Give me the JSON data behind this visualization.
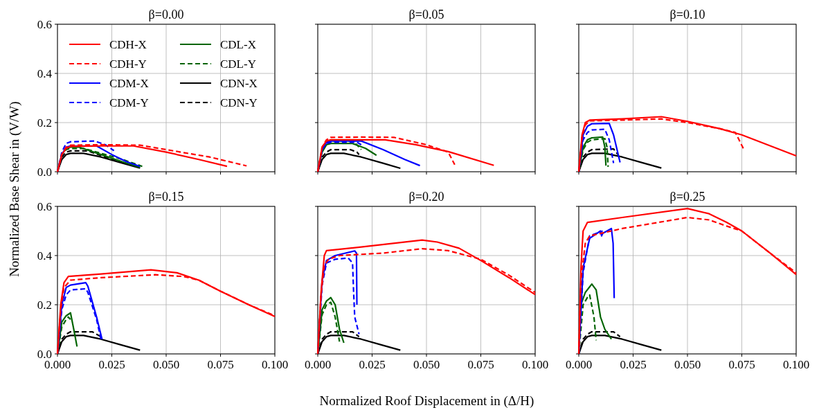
{
  "chart_data": [
    {
      "type": "line",
      "title": "β=0.00",
      "xlabel": "Normalized Roof Displacement in (Δ/H)",
      "ylabel": "Normalized Base Shear in (V/W)",
      "xlim": [
        0,
        0.1
      ],
      "ylim": [
        0,
        0.6
      ],
      "xticks": [
        {
          "value": 0,
          "label": null
        },
        {
          "value": 0.025,
          "label": null
        },
        {
          "value": 0.05,
          "label": null
        },
        {
          "value": 0.075,
          "label": null
        },
        {
          "value": 0.1,
          "label": null
        }
      ],
      "yticks": [
        {
          "value": 0,
          "label": "0.0"
        },
        {
          "value": 0.2,
          "label": "0.2"
        },
        {
          "value": 0.4,
          "label": "0.4"
        },
        {
          "value": 0.6,
          "label": "0.6"
        }
      ],
      "grid": true,
      "legend": "top left",
      "tick_labels": "y",
      "series": [
        {
          "name": "CDH-X",
          "color": "#ff0000",
          "line_style": "solid",
          "x": [
            0,
            0.002,
            0.004,
            0.006,
            0.02,
            0.035,
            0.05,
            0.065,
            0.078
          ],
          "values": [
            0,
            0.07,
            0.095,
            0.103,
            0.105,
            0.105,
            0.08,
            0.05,
            0.022
          ]
        },
        {
          "name": "CDH-Y",
          "color": "#ff0000",
          "line_style": "dashed",
          "x": [
            0,
            0.002,
            0.004,
            0.006,
            0.02,
            0.038,
            0.05,
            0.07,
            0.087
          ],
          "values": [
            0,
            0.07,
            0.1,
            0.108,
            0.11,
            0.108,
            0.09,
            0.06,
            0.024
          ]
        },
        {
          "name": "CDM-X",
          "color": "#0000ff",
          "line_style": "solid",
          "x": [
            0,
            0.002,
            0.004,
            0.006,
            0.018,
            0.025,
            0.032,
            0.038
          ],
          "values": [
            0,
            0.07,
            0.1,
            0.105,
            0.105,
            0.07,
            0.04,
            0.022
          ]
        },
        {
          "name": "CDM-Y",
          "color": "#0000ff",
          "line_style": "dashed",
          "x": [
            0,
            0.002,
            0.004,
            0.006,
            0.017,
            0.022,
            0.026
          ],
          "values": [
            0,
            0.08,
            0.115,
            0.122,
            0.125,
            0.11,
            0.086
          ]
        },
        {
          "name": "CDL-X",
          "color": "#006400",
          "line_style": "solid",
          "x": [
            0,
            0.002,
            0.004,
            0.006,
            0.01,
            0.02,
            0.03,
            0.038
          ],
          "values": [
            0,
            0.07,
            0.095,
            0.1,
            0.1,
            0.07,
            0.04,
            0.018
          ]
        },
        {
          "name": "CDL-Y",
          "color": "#006400",
          "line_style": "dashed",
          "x": [
            0,
            0.002,
            0.004,
            0.006,
            0.012,
            0.02,
            0.03,
            0.039
          ],
          "values": [
            0,
            0.07,
            0.09,
            0.095,
            0.095,
            0.075,
            0.05,
            0.022
          ]
        },
        {
          "name": "CDN-X",
          "color": "#000000",
          "line_style": "solid",
          "x": [
            0,
            0.002,
            0.004,
            0.006,
            0.012,
            0.02,
            0.03,
            0.038
          ],
          "values": [
            0,
            0.05,
            0.07,
            0.075,
            0.075,
            0.06,
            0.035,
            0.015
          ]
        },
        {
          "name": "CDN-Y",
          "color": "#000000",
          "line_style": "dashed",
          "x": [
            0,
            0.002,
            0.004,
            0.006,
            0.014,
            0.025,
            0.035
          ],
          "values": [
            0,
            0.06,
            0.08,
            0.085,
            0.085,
            0.05,
            0.025
          ]
        }
      ]
    },
    {
      "type": "line",
      "title": "β=0.05",
      "xlim": [
        0,
        0.1
      ],
      "ylim": [
        0,
        0.6
      ],
      "xticks": [
        {
          "value": 0,
          "label": null
        },
        {
          "value": 0.025,
          "label": null
        },
        {
          "value": 0.05,
          "label": null
        },
        {
          "value": 0.075,
          "label": null
        },
        {
          "value": 0.1,
          "label": null
        }
      ],
      "yticks": [
        {
          "value": 0,
          "label": null
        },
        {
          "value": 0.2,
          "label": null
        },
        {
          "value": 0.4,
          "label": null
        },
        {
          "value": 0.6,
          "label": null
        }
      ],
      "grid": true,
      "tick_labels": false,
      "series": [
        {
          "color": "#ff0000",
          "line_style": "solid",
          "x": [
            0,
            0.002,
            0.004,
            0.006,
            0.02,
            0.031,
            0.045,
            0.06,
            0.081
          ],
          "values": [
            0,
            0.1,
            0.125,
            0.13,
            0.13,
            0.13,
            0.11,
            0.082,
            0.026
          ]
        },
        {
          "color": "#ff0000",
          "line_style": "dashed",
          "x": [
            0,
            0.002,
            0.004,
            0.006,
            0.02,
            0.035,
            0.05,
            0.06,
            0.063
          ],
          "values": [
            0,
            0.1,
            0.13,
            0.14,
            0.141,
            0.14,
            0.11,
            0.08,
            0.029
          ]
        },
        {
          "color": "#0000ff",
          "line_style": "solid",
          "x": [
            0,
            0.002,
            0.004,
            0.006,
            0.02,
            0.03,
            0.04,
            0.047
          ],
          "values": [
            0,
            0.09,
            0.12,
            0.125,
            0.125,
            0.09,
            0.05,
            0.025
          ]
        },
        {
          "color": "#0000ff",
          "line_style": "dashed",
          "x": [
            0,
            0.002,
            0.004,
            0.006,
            0.018,
            0.02
          ],
          "values": [
            0,
            0.09,
            0.115,
            0.12,
            0.12,
            0.11
          ]
        },
        {
          "color": "#006400",
          "line_style": "solid",
          "x": [
            0,
            0.002,
            0.004,
            0.006,
            0.016,
            0.022,
            0.027
          ],
          "values": [
            0,
            0.08,
            0.11,
            0.115,
            0.115,
            0.095,
            0.067
          ]
        },
        {
          "color": "#006400",
          "line_style": "dashed",
          "x": [
            0,
            0.002,
            0.004,
            0.006,
            0.015,
            0.018,
            0.02
          ],
          "values": [
            0,
            0.09,
            0.12,
            0.125,
            0.125,
            0.11,
            0.09
          ]
        },
        {
          "color": "#000000",
          "line_style": "solid",
          "x": [
            0,
            0.002,
            0.004,
            0.006,
            0.012,
            0.02,
            0.03,
            0.038
          ],
          "values": [
            0,
            0.05,
            0.07,
            0.075,
            0.075,
            0.06,
            0.035,
            0.014
          ]
        },
        {
          "color": "#000000",
          "line_style": "dashed",
          "x": [
            0,
            0.002,
            0.004,
            0.006,
            0.015,
            0.018,
            0.019
          ],
          "values": [
            0,
            0.06,
            0.08,
            0.09,
            0.09,
            0.08,
            0.07
          ]
        }
      ]
    },
    {
      "type": "line",
      "title": "β=0.10",
      "xlim": [
        0,
        0.1
      ],
      "ylim": [
        0,
        0.6
      ],
      "xticks": [
        {
          "value": 0,
          "label": null
        },
        {
          "value": 0.025,
          "label": null
        },
        {
          "value": 0.05,
          "label": null
        },
        {
          "value": 0.075,
          "label": null
        },
        {
          "value": 0.1,
          "label": null
        }
      ],
      "yticks": [
        {
          "value": 0,
          "label": null
        },
        {
          "value": 0.2,
          "label": null
        },
        {
          "value": 0.4,
          "label": null
        },
        {
          "value": 0.6,
          "label": null
        }
      ],
      "grid": true,
      "tick_labels": false,
      "series": [
        {
          "color": "#ff0000",
          "line_style": "solid",
          "x": [
            0,
            0.0015,
            0.003,
            0.005,
            0.02,
            0.038,
            0.05,
            0.065,
            0.075,
            0.1
          ],
          "values": [
            0,
            0.15,
            0.2,
            0.21,
            0.215,
            0.224,
            0.205,
            0.175,
            0.15,
            0.065
          ]
        },
        {
          "color": "#ff0000",
          "line_style": "dashed",
          "x": [
            0,
            0.0015,
            0.003,
            0.005,
            0.02,
            0.038,
            0.05,
            0.065,
            0.072,
            0.076
          ],
          "values": [
            0,
            0.14,
            0.19,
            0.207,
            0.21,
            0.215,
            0.2,
            0.175,
            0.16,
            0.09
          ]
        },
        {
          "color": "#0000ff",
          "line_style": "solid",
          "x": [
            0,
            0.002,
            0.004,
            0.006,
            0.014,
            0.016,
            0.019
          ],
          "values": [
            0,
            0.15,
            0.185,
            0.195,
            0.197,
            0.15,
            0.038
          ]
        },
        {
          "color": "#0000ff",
          "line_style": "dashed",
          "x": [
            0,
            0.002,
            0.004,
            0.006,
            0.012,
            0.014,
            0.016
          ],
          "values": [
            0,
            0.13,
            0.16,
            0.17,
            0.173,
            0.13,
            0.035
          ]
        },
        {
          "color": "#006400",
          "line_style": "solid",
          "x": [
            0,
            0.002,
            0.004,
            0.006,
            0.011,
            0.012,
            0.0125
          ],
          "values": [
            0,
            0.1,
            0.13,
            0.138,
            0.141,
            0.1,
            0.025
          ]
        },
        {
          "color": "#006400",
          "line_style": "dashed",
          "x": [
            0,
            0.002,
            0.004,
            0.006,
            0.012,
            0.013,
            0.0135
          ],
          "values": [
            0,
            0.09,
            0.12,
            0.13,
            0.135,
            0.1,
            0.02
          ]
        },
        {
          "color": "#000000",
          "line_style": "solid",
          "x": [
            0,
            0.002,
            0.004,
            0.006,
            0.012,
            0.02,
            0.03,
            0.038
          ],
          "values": [
            0,
            0.05,
            0.07,
            0.075,
            0.075,
            0.06,
            0.035,
            0.015
          ]
        },
        {
          "color": "#000000",
          "line_style": "dashed",
          "x": [
            0,
            0.002,
            0.004,
            0.006,
            0.016,
            0.018
          ],
          "values": [
            0,
            0.06,
            0.08,
            0.09,
            0.093,
            0.07
          ]
        }
      ]
    },
    {
      "type": "line",
      "title": "β=0.15",
      "xlim": [
        0,
        0.1
      ],
      "ylim": [
        0,
        0.6
      ],
      "xticks": [
        {
          "value": 0,
          "label": "0.000"
        },
        {
          "value": 0.025,
          "label": "0.025"
        },
        {
          "value": 0.05,
          "label": "0.050"
        },
        {
          "value": 0.075,
          "label": "0.075"
        },
        {
          "value": 0.1,
          "label": "0.100"
        }
      ],
      "yticks": [
        {
          "value": 0,
          "label": "0.0"
        },
        {
          "value": 0.2,
          "label": "0.2"
        },
        {
          "value": 0.4,
          "label": "0.4"
        },
        {
          "value": 0.6,
          "label": "0.6"
        }
      ],
      "grid": true,
      "series": [
        {
          "color": "#ff0000",
          "line_style": "solid",
          "x": [
            0,
            0.0015,
            0.003,
            0.005,
            0.02,
            0.043,
            0.055,
            0.065,
            0.075,
            0.088,
            0.1
          ],
          "values": [
            0,
            0.2,
            0.29,
            0.315,
            0.325,
            0.342,
            0.33,
            0.3,
            0.255,
            0.2,
            0.152
          ]
        },
        {
          "color": "#ff0000",
          "line_style": "dashed",
          "x": [
            0,
            0.0015,
            0.003,
            0.006,
            0.02,
            0.045,
            0.058,
            0.065,
            0.075,
            0.088,
            0.1
          ],
          "values": [
            0,
            0.18,
            0.27,
            0.3,
            0.31,
            0.322,
            0.315,
            0.3,
            0.255,
            0.2,
            0.155
          ]
        },
        {
          "color": "#0000ff",
          "line_style": "solid",
          "x": [
            0,
            0.002,
            0.004,
            0.006,
            0.013,
            0.014,
            0.018,
            0.0205
          ],
          "values": [
            0,
            0.2,
            0.27,
            0.28,
            0.29,
            0.275,
            0.15,
            0.06
          ]
        },
        {
          "color": "#0000ff",
          "line_style": "dashed",
          "x": [
            0,
            0.002,
            0.004,
            0.006,
            0.013,
            0.014,
            0.018,
            0.02
          ],
          "values": [
            0,
            0.18,
            0.24,
            0.26,
            0.265,
            0.25,
            0.14,
            0.06
          ]
        },
        {
          "color": "#006400",
          "line_style": "solid",
          "x": [
            0,
            0.002,
            0.004,
            0.006,
            0.0075,
            0.009
          ],
          "values": [
            0,
            0.13,
            0.155,
            0.167,
            0.1,
            0.03
          ]
        },
        {
          "color": "#006400",
          "line_style": "dashed",
          "x": [
            0,
            0.002,
            0.004,
            0.005,
            0.006
          ],
          "values": [
            0,
            0.11,
            0.14,
            0.15,
            0.14
          ]
        },
        {
          "color": "#000000",
          "line_style": "solid",
          "x": [
            0,
            0.002,
            0.004,
            0.006,
            0.012,
            0.02,
            0.03,
            0.038
          ],
          "values": [
            0,
            0.05,
            0.07,
            0.075,
            0.075,
            0.06,
            0.035,
            0.015
          ]
        },
        {
          "color": "#000000",
          "line_style": "dashed",
          "x": [
            0,
            0.002,
            0.004,
            0.006,
            0.016,
            0.02
          ],
          "values": [
            0,
            0.06,
            0.08,
            0.09,
            0.09,
            0.07
          ]
        }
      ]
    },
    {
      "type": "line",
      "title": "β=0.20",
      "xlim": [
        0,
        0.1
      ],
      "ylim": [
        0,
        0.6
      ],
      "xticks": [
        {
          "value": 0,
          "label": "0.000"
        },
        {
          "value": 0.025,
          "label": "0.025"
        },
        {
          "value": 0.05,
          "label": "0.050"
        },
        {
          "value": 0.075,
          "label": "0.075"
        },
        {
          "value": 0.1,
          "label": "0.100"
        }
      ],
      "yticks": [
        {
          "value": 0,
          "label": null
        },
        {
          "value": 0.2,
          "label": null
        },
        {
          "value": 0.4,
          "label": null
        },
        {
          "value": 0.6,
          "label": null
        }
      ],
      "grid": true,
      "tick_labels": "x",
      "series": [
        {
          "color": "#ff0000",
          "line_style": "solid",
          "x": [
            0,
            0.0015,
            0.003,
            0.004,
            0.02,
            0.048,
            0.055,
            0.065,
            0.075,
            0.088,
            0.1
          ],
          "values": [
            0,
            0.25,
            0.4,
            0.42,
            0.435,
            0.463,
            0.455,
            0.43,
            0.38,
            0.31,
            0.241
          ]
        },
        {
          "color": "#ff0000",
          "line_style": "dashed",
          "x": [
            0,
            0.0015,
            0.003,
            0.005,
            0.01,
            0.03,
            0.048,
            0.06,
            0.075,
            0.088,
            0.1
          ],
          "values": [
            0,
            0.24,
            0.36,
            0.385,
            0.4,
            0.41,
            0.428,
            0.42,
            0.385,
            0.32,
            0.25
          ]
        },
        {
          "color": "#0000ff",
          "line_style": "solid",
          "x": [
            0,
            0.002,
            0.004,
            0.008,
            0.017,
            0.0178,
            0.018
          ],
          "values": [
            0,
            0.3,
            0.38,
            0.4,
            0.419,
            0.41,
            0.2
          ]
        },
        {
          "color": "#0000ff",
          "line_style": "dashed",
          "x": [
            0,
            0.002,
            0.004,
            0.008,
            0.014,
            0.016,
            0.0165,
            0.017,
            0.019
          ],
          "values": [
            0,
            0.28,
            0.37,
            0.385,
            0.39,
            0.37,
            0.25,
            0.15,
            0.08
          ]
        },
        {
          "color": "#006400",
          "line_style": "solid",
          "x": [
            0,
            0.002,
            0.004,
            0.006,
            0.008,
            0.01,
            0.012
          ],
          "values": [
            0,
            0.18,
            0.215,
            0.229,
            0.2,
            0.1,
            0.045
          ]
        },
        {
          "color": "#006400",
          "line_style": "dashed",
          "x": [
            0,
            0.002,
            0.004,
            0.006,
            0.008,
            0.01
          ],
          "values": [
            0,
            0.16,
            0.2,
            0.21,
            0.15,
            0.05
          ]
        },
        {
          "color": "#000000",
          "line_style": "solid",
          "x": [
            0,
            0.002,
            0.004,
            0.006,
            0.012,
            0.02,
            0.03,
            0.038
          ],
          "values": [
            0,
            0.05,
            0.07,
            0.075,
            0.075,
            0.06,
            0.035,
            0.015
          ]
        },
        {
          "color": "#000000",
          "line_style": "dashed",
          "x": [
            0,
            0.002,
            0.004,
            0.006,
            0.016,
            0.019
          ],
          "values": [
            0,
            0.06,
            0.08,
            0.09,
            0.09,
            0.07
          ]
        }
      ]
    },
    {
      "type": "line",
      "title": "β=0.25",
      "xlim": [
        0,
        0.1
      ],
      "ylim": [
        0,
        0.6
      ],
      "xticks": [
        {
          "value": 0,
          "label": "0.000"
        },
        {
          "value": 0.025,
          "label": "0.025"
        },
        {
          "value": 0.05,
          "label": "0.050"
        },
        {
          "value": 0.075,
          "label": "0.075"
        },
        {
          "value": 0.1,
          "label": "0.100"
        }
      ],
      "yticks": [
        {
          "value": 0,
          "label": null
        },
        {
          "value": 0.2,
          "label": null
        },
        {
          "value": 0.4,
          "label": null
        },
        {
          "value": 0.6,
          "label": null
        }
      ],
      "grid": true,
      "tick_labels": "x",
      "series": [
        {
          "color": "#ff0000",
          "line_style": "solid",
          "x": [
            0,
            0.001,
            0.002,
            0.004,
            0.02,
            0.05,
            0.06,
            0.068,
            0.075,
            0.088,
            0.1
          ],
          "values": [
            0,
            0.35,
            0.5,
            0.535,
            0.555,
            0.591,
            0.57,
            0.535,
            0.5,
            0.41,
            0.323
          ]
        },
        {
          "color": "#ff0000",
          "line_style": "dashed",
          "x": [
            0,
            0.001,
            0.003,
            0.005,
            0.02,
            0.05,
            0.06,
            0.068,
            0.075,
            0.088,
            0.1
          ],
          "values": [
            0,
            0.3,
            0.45,
            0.48,
            0.51,
            0.555,
            0.545,
            0.52,
            0.5,
            0.41,
            0.33
          ]
        },
        {
          "color": "#0000ff",
          "line_style": "solid",
          "x": [
            0,
            0.002,
            0.005,
            0.01,
            0.0105,
            0.011,
            0.015,
            0.0158,
            0.0163
          ],
          "values": [
            0,
            0.35,
            0.47,
            0.5,
            0.48,
            0.49,
            0.51,
            0.45,
            0.227
          ]
        },
        {
          "color": "#0000ff",
          "line_style": "dashed",
          "x": [
            0,
            0.002,
            0.005,
            0.008,
            0.011
          ],
          "values": [
            0,
            0.33,
            0.48,
            0.49,
            0.5
          ]
        },
        {
          "color": "#006400",
          "line_style": "solid",
          "x": [
            0,
            0.001,
            0.003,
            0.006,
            0.008,
            0.01,
            0.012,
            0.015
          ],
          "values": [
            0,
            0.2,
            0.25,
            0.284,
            0.26,
            0.15,
            0.1,
            0.06
          ]
        },
        {
          "color": "#006400",
          "line_style": "dashed",
          "x": [
            0,
            0.002,
            0.004,
            0.005,
            0.007,
            0.008
          ],
          "values": [
            0,
            0.2,
            0.23,
            0.24,
            0.15,
            0.055
          ]
        },
        {
          "color": "#000000",
          "line_style": "solid",
          "x": [
            0,
            0.002,
            0.004,
            0.006,
            0.012,
            0.02,
            0.03,
            0.038
          ],
          "values": [
            0,
            0.05,
            0.07,
            0.075,
            0.075,
            0.06,
            0.035,
            0.015
          ]
        },
        {
          "color": "#000000",
          "line_style": "dashed",
          "x": [
            0,
            0.002,
            0.004,
            0.006,
            0.016,
            0.019
          ],
          "values": [
            0,
            0.06,
            0.08,
            0.09,
            0.09,
            0.07
          ]
        }
      ]
    }
  ]
}
